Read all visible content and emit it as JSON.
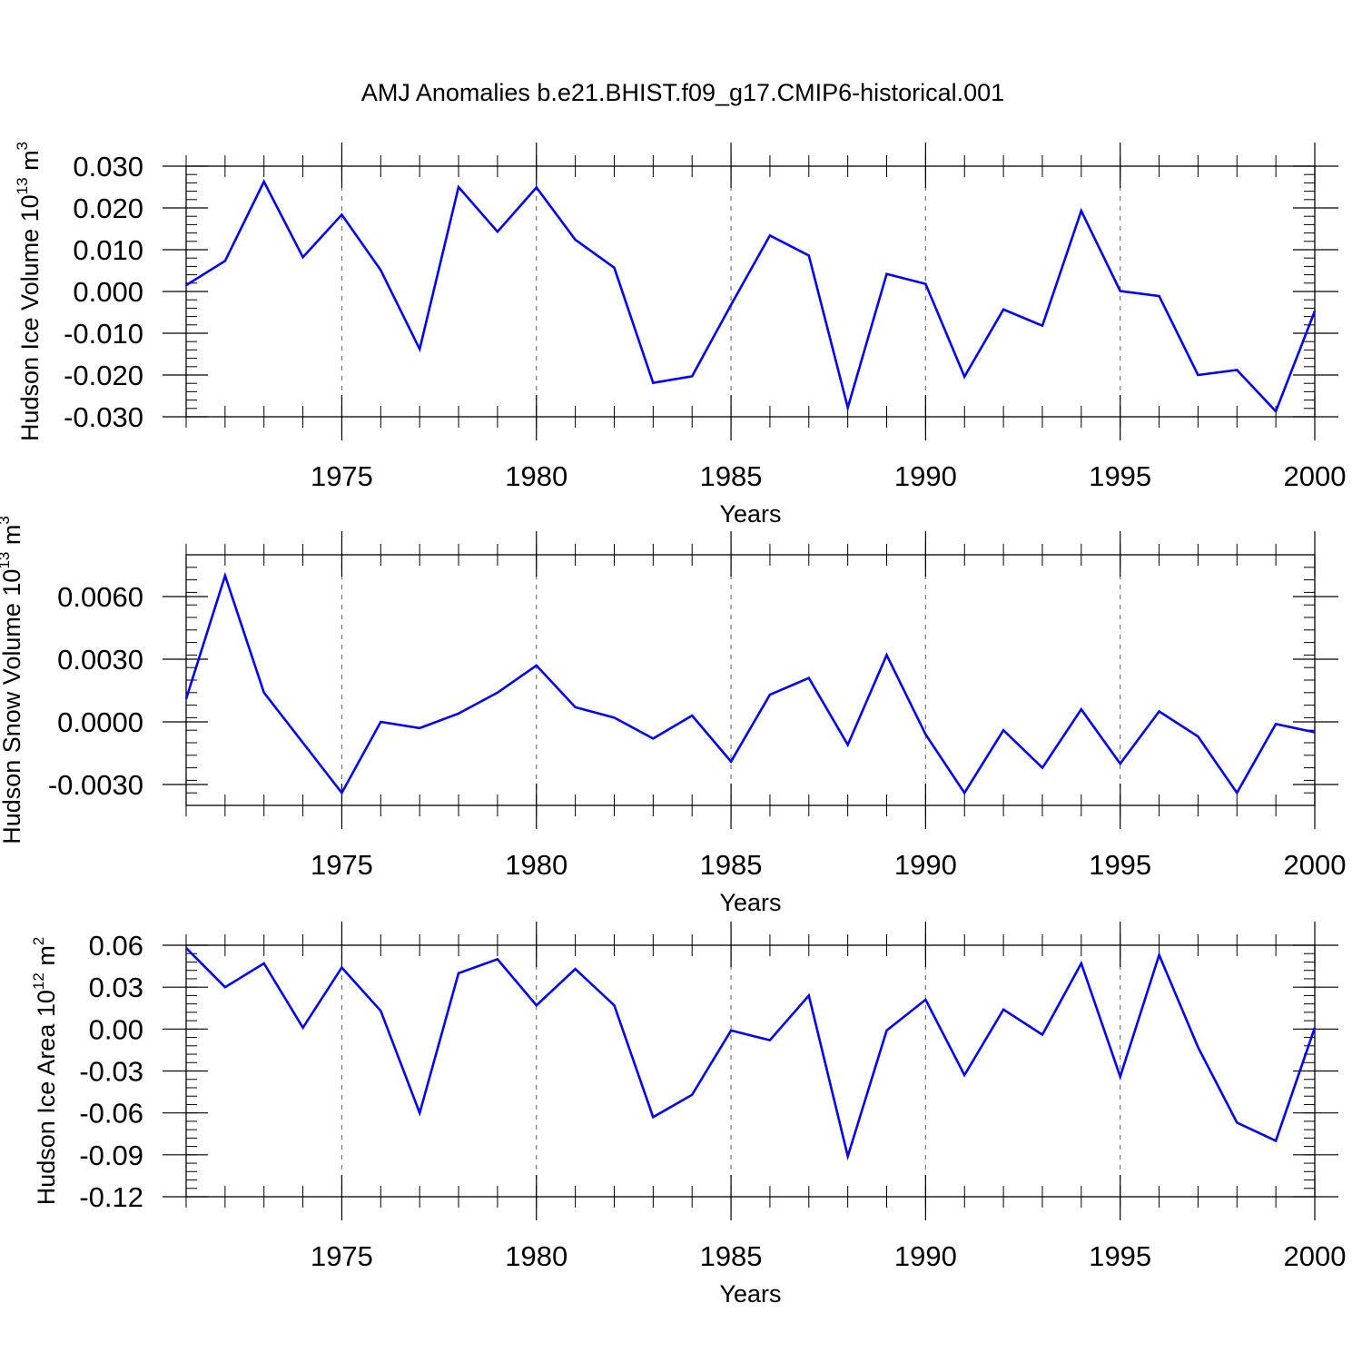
{
  "title": "AMJ Anomalies b.e21.BHIST.f09_g17.CMIP6-historical.001",
  "colors": {
    "line": "#0000ff",
    "axis": "#000000",
    "grid": "#777777"
  },
  "chart_data": [
    {
      "type": "line",
      "xlabel": "Years",
      "ylabel": "Hudson Ice Volume 10",
      "ylabel_exp": "13",
      "ylabel_unit": " m",
      "ylabel_unit_exp": "3",
      "xlim": [
        1971,
        2000
      ],
      "ylim": [
        -0.03,
        0.03
      ],
      "x_ticks": [
        1975,
        1980,
        1985,
        1990,
        1995,
        2000
      ],
      "x_tick_labels": [
        "1975",
        "1980",
        "1985",
        "1990",
        "1995",
        "2000"
      ],
      "y_ticks": [
        0.03,
        0.02,
        0.01,
        0.0,
        -0.01,
        -0.02,
        -0.03
      ],
      "y_tick_labels": [
        "0.030",
        "0.020",
        "0.010",
        "0.000",
        "-0.010",
        "-0.020",
        "-0.030"
      ],
      "grid": "vertical dashed at major x ticks",
      "x": [
        1971,
        1972,
        1973,
        1974,
        1975,
        1976,
        1977,
        1978,
        1979,
        1980,
        1981,
        1982,
        1983,
        1984,
        1985,
        1986,
        1987,
        1988,
        1989,
        1990,
        1991,
        1992,
        1993,
        1994,
        1995,
        1996,
        1997,
        1998,
        1999,
        2000
      ],
      "values": [
        0.0015,
        0.0073,
        0.0263,
        0.0082,
        0.0184,
        0.0051,
        -0.0138,
        0.025,
        0.0143,
        0.0249,
        0.0124,
        0.0057,
        -0.0219,
        -0.0203,
        -0.0032,
        0.0134,
        0.0086,
        -0.0278,
        0.0042,
        0.0018,
        -0.0204,
        -0.0043,
        -0.0082,
        0.0193,
        0.0001,
        -0.0011,
        -0.02,
        -0.0188,
        -0.0287,
        -0.0047
      ]
    },
    {
      "type": "line",
      "xlabel": "Years",
      "ylabel": "Hudson Snow Volume 10",
      "ylabel_exp": "13",
      "ylabel_unit": " m",
      "ylabel_unit_exp": "3",
      "xlim": [
        1971,
        2000
      ],
      "ylim": [
        -0.004,
        0.008
      ],
      "x_ticks": [
        1975,
        1980,
        1985,
        1990,
        1995,
        2000
      ],
      "x_tick_labels": [
        "1975",
        "1980",
        "1985",
        "1990",
        "1995",
        "2000"
      ],
      "y_ticks": [
        0.006,
        0.003,
        0.0,
        -0.003
      ],
      "y_tick_labels": [
        "0.0060",
        "0.0030",
        "0.0000",
        "-0.0030"
      ],
      "grid": "vertical dashed at major x ticks",
      "x": [
        1971,
        1972,
        1973,
        1974,
        1975,
        1976,
        1977,
        1978,
        1979,
        1980,
        1981,
        1982,
        1983,
        1984,
        1985,
        1986,
        1987,
        1988,
        1989,
        1990,
        1991,
        1992,
        1993,
        1994,
        1995,
        1996,
        1997,
        1998,
        1999,
        2000
      ],
      "values": [
        0.0011,
        0.007,
        0.0014,
        -0.001,
        -0.0034,
        0.0,
        -0.0003,
        0.0004,
        0.0014,
        0.0027,
        0.0007,
        0.0002,
        -0.0008,
        0.0003,
        -0.0019,
        0.0013,
        0.0021,
        -0.0011,
        0.0032,
        -0.0006,
        -0.0034,
        -0.0004,
        -0.0022,
        0.0006,
        -0.002,
        0.0005,
        -0.0007,
        -0.0034,
        -0.0001,
        -0.0005
      ]
    },
    {
      "type": "line",
      "xlabel": "Years",
      "ylabel": "Hudson Ice Area 10",
      "ylabel_exp": "12",
      "ylabel_unit": " m",
      "ylabel_unit_exp": "2",
      "xlim": [
        1971,
        2000
      ],
      "ylim": [
        -0.12,
        0.06
      ],
      "x_ticks": [
        1975,
        1980,
        1985,
        1990,
        1995,
        2000
      ],
      "x_tick_labels": [
        "1975",
        "1980",
        "1985",
        "1990",
        "1995",
        "2000"
      ],
      "y_ticks": [
        0.06,
        0.03,
        0.0,
        -0.03,
        -0.06,
        -0.09,
        -0.12
      ],
      "y_tick_labels": [
        "0.06",
        "0.03",
        "0.00",
        "-0.03",
        "-0.06",
        "-0.09",
        "-0.12"
      ],
      "grid": "vertical dashed at major x ticks",
      "x": [
        1971,
        1972,
        1973,
        1974,
        1975,
        1976,
        1977,
        1978,
        1979,
        1980,
        1981,
        1982,
        1983,
        1984,
        1985,
        1986,
        1987,
        1988,
        1989,
        1990,
        1991,
        1992,
        1993,
        1994,
        1995,
        1996,
        1997,
        1998,
        1999,
        2000
      ],
      "values": [
        0.058,
        0.03,
        0.047,
        0.001,
        0.044,
        0.013,
        -0.06,
        0.04,
        0.05,
        0.017,
        0.043,
        0.017,
        -0.063,
        -0.047,
        -0.001,
        -0.008,
        0.024,
        -0.091,
        -0.001,
        0.021,
        -0.033,
        0.014,
        -0.004,
        0.047,
        -0.034,
        0.053,
        -0.013,
        -0.067,
        -0.08,
        0.001
      ]
    }
  ]
}
